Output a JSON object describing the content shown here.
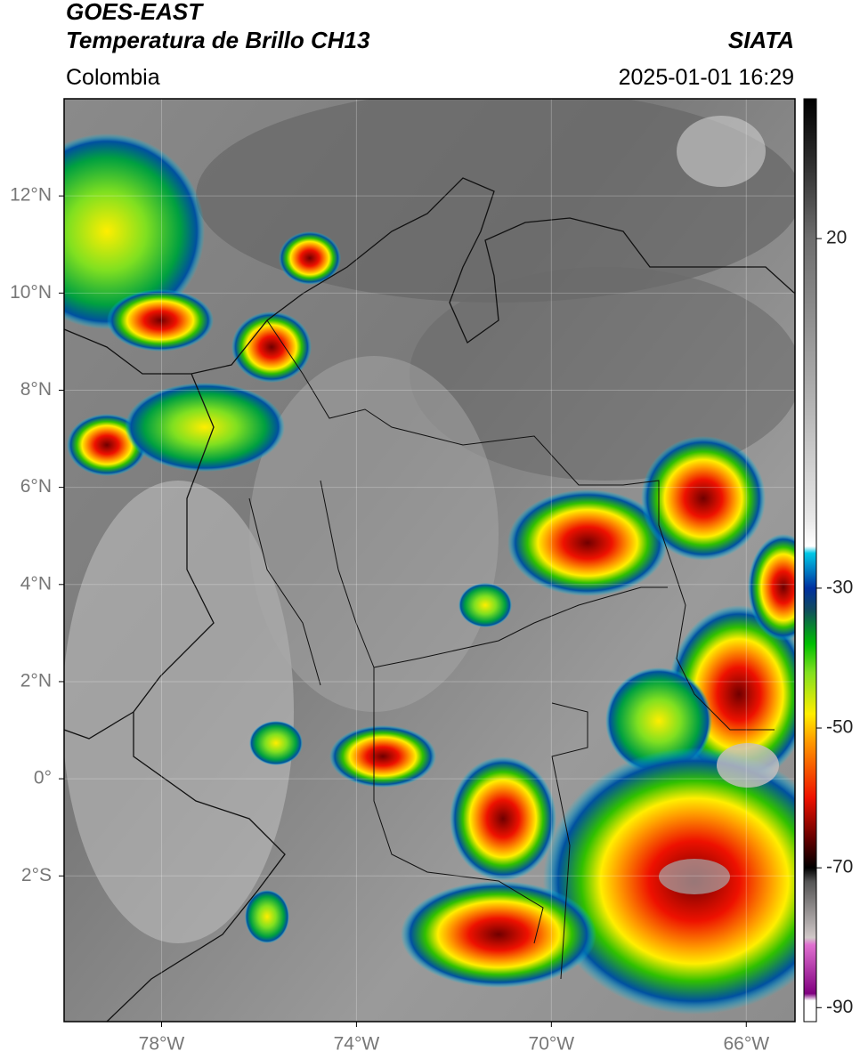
{
  "chart_data": {
    "type": "map",
    "title": "GOES-EAST",
    "subtitle": "Temperatura de Brillo CH13",
    "source": "SIATA",
    "region": "Colombia",
    "datetime": "2025-01-01 16:29",
    "xlim": [
      -80,
      -65
    ],
    "ylim": [
      -5,
      14
    ],
    "xticks": [
      {
        "value": -78,
        "label": "78°W"
      },
      {
        "value": -74,
        "label": "74°W"
      },
      {
        "value": -70,
        "label": "70°W"
      },
      {
        "value": -66,
        "label": "66°W"
      }
    ],
    "yticks": [
      {
        "value": 12,
        "label": "12°N"
      },
      {
        "value": 10,
        "label": "10°N"
      },
      {
        "value": 8,
        "label": "8°N"
      },
      {
        "value": 6,
        "label": "6°N"
      },
      {
        "value": 4,
        "label": "4°N"
      },
      {
        "value": 2,
        "label": "2°N"
      },
      {
        "value": 0,
        "label": "0°"
      },
      {
        "value": -2,
        "label": "2°S"
      }
    ],
    "grid": true,
    "colorbar": {
      "lim": [
        -92,
        40
      ],
      "ticks": [
        20,
        -30,
        -50,
        -70,
        -90
      ],
      "colormap": [
        {
          "value": 40,
          "color": "#000000"
        },
        {
          "value": 30,
          "color": "#333333"
        },
        {
          "value": 20,
          "color": "#6e6e6e"
        },
        {
          "value": 0,
          "color": "#a8a8a8"
        },
        {
          "value": -20,
          "color": "#e8e8e8"
        },
        {
          "value": -24,
          "color": "#ffffff"
        },
        {
          "value": -25,
          "color": "#00c8e6"
        },
        {
          "value": -30,
          "color": "#0030a0"
        },
        {
          "value": -33,
          "color": "#104a60"
        },
        {
          "value": -38,
          "color": "#00c000"
        },
        {
          "value": -42,
          "color": "#80e020"
        },
        {
          "value": -48,
          "color": "#ffee00"
        },
        {
          "value": -52,
          "color": "#ff9900"
        },
        {
          "value": -60,
          "color": "#ee1100"
        },
        {
          "value": -66,
          "color": "#600000"
        },
        {
          "value": -70,
          "color": "#000000"
        },
        {
          "value": -72,
          "color": "#555555"
        },
        {
          "value": -80,
          "color": "#d0c8c8"
        },
        {
          "value": -81,
          "color": "#e070d0"
        },
        {
          "value": -88,
          "color": "#800080"
        },
        {
          "value": -89,
          "color": "#ffffff"
        }
      ]
    }
  }
}
